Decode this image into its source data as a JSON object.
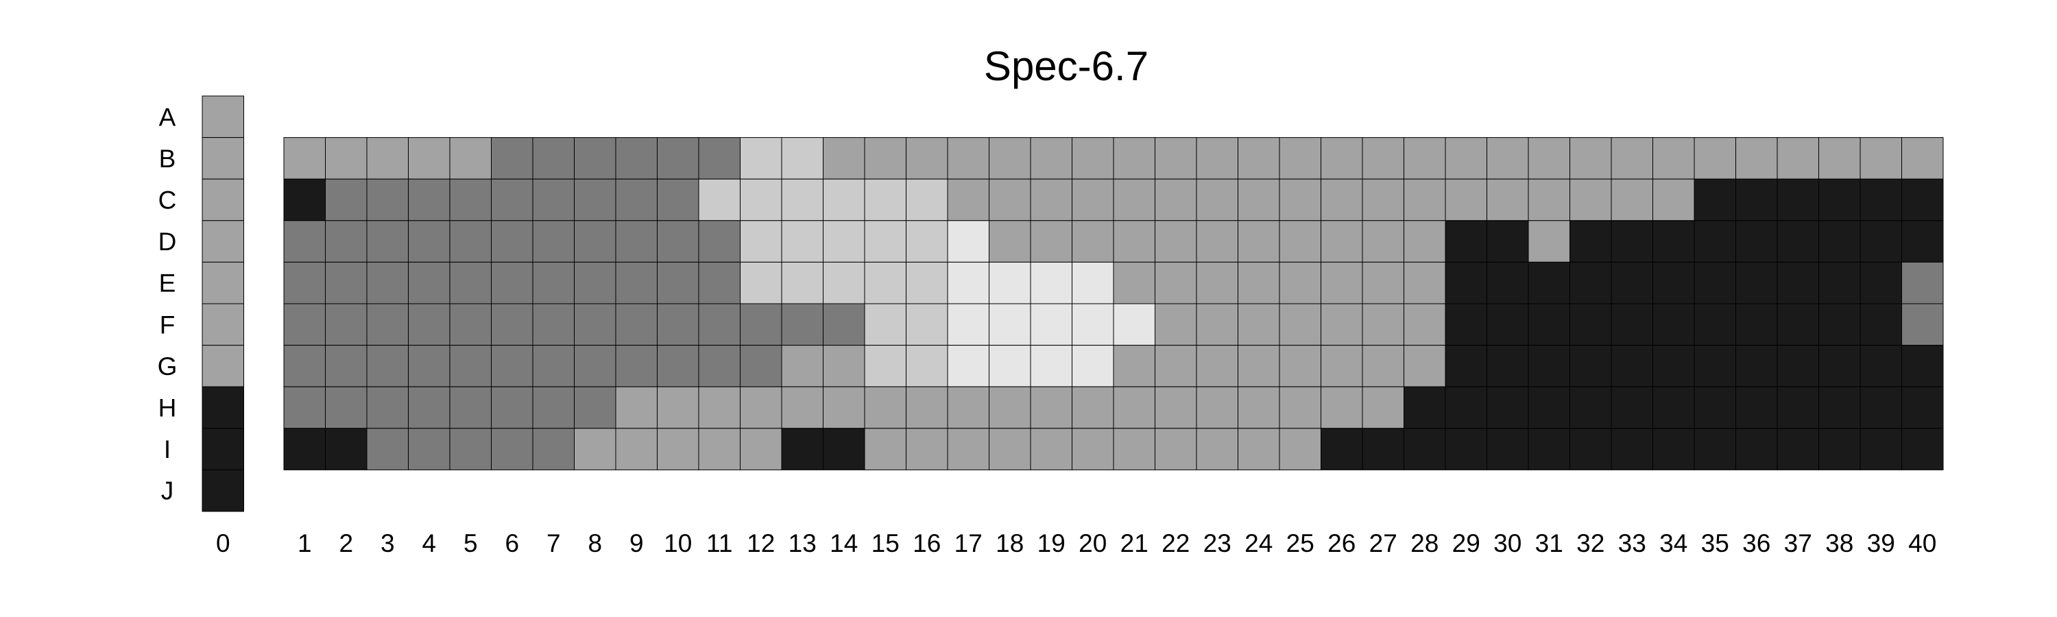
{
  "chart_data": {
    "type": "heatmap",
    "title": "Spec-6.7",
    "xlabel": "",
    "ylabel": "",
    "rows": [
      "A",
      "B",
      "C",
      "D",
      "E",
      "F",
      "G",
      "H",
      "I",
      "J"
    ],
    "control_column": {
      "label": "0",
      "values": [
        "L2",
        "L2",
        "L2",
        "L2",
        "L2",
        "L2",
        "L2",
        "L0",
        "L0",
        "L0"
      ]
    },
    "columns": [
      "1",
      "2",
      "3",
      "4",
      "5",
      "6",
      "7",
      "8",
      "9",
      "10",
      "11",
      "12",
      "13",
      "14",
      "15",
      "16",
      "17",
      "18",
      "19",
      "20",
      "21",
      "22",
      "23",
      "24",
      "25",
      "26",
      "27",
      "28",
      "29",
      "30",
      "31",
      "32",
      "33",
      "34",
      "35",
      "36",
      "37",
      "38",
      "39",
      "40"
    ],
    "grid_rows": [
      "B",
      "C",
      "D",
      "E",
      "F",
      "G",
      "H",
      "I"
    ],
    "levels": {
      "L0": "#1a1a1a",
      "L1": "#7b7b7b",
      "L2": "#a3a3a3",
      "L3": "#cbcbcb",
      "L4": "#e6e6e6"
    },
    "grid": [
      [
        "L2",
        "L2",
        "L2",
        "L2",
        "L2",
        "L1",
        "L1",
        "L1",
        "L1",
        "L1",
        "L1",
        "L3",
        "L3",
        "L2",
        "L2",
        "L2",
        "L2",
        "L2",
        "L2",
        "L2",
        "L2",
        "L2",
        "L2",
        "L2",
        "L2",
        "L2",
        "L2",
        "L2",
        "L2",
        "L2",
        "L2",
        "L2",
        "L2",
        "L2",
        "L2",
        "L2",
        "L2",
        "L2",
        "L2",
        "L2"
      ],
      [
        "L0",
        "L1",
        "L1",
        "L1",
        "L1",
        "L1",
        "L1",
        "L1",
        "L1",
        "L1",
        "L3",
        "L3",
        "L3",
        "L3",
        "L3",
        "L3",
        "L2",
        "L2",
        "L2",
        "L2",
        "L2",
        "L2",
        "L2",
        "L2",
        "L2",
        "L2",
        "L2",
        "L2",
        "L2",
        "L2",
        "L2",
        "L2",
        "L2",
        "L2",
        "L0",
        "L0",
        "L0",
        "L0",
        "L0",
        "L0"
      ],
      [
        "L1",
        "L1",
        "L1",
        "L1",
        "L1",
        "L1",
        "L1",
        "L1",
        "L1",
        "L1",
        "L1",
        "L3",
        "L3",
        "L3",
        "L3",
        "L3",
        "L4",
        "L2",
        "L2",
        "L2",
        "L2",
        "L2",
        "L2",
        "L2",
        "L2",
        "L2",
        "L2",
        "L2",
        "L0",
        "L0",
        "L2",
        "L0",
        "L0",
        "L0",
        "L0",
        "L0",
        "L0",
        "L0",
        "L0",
        "L0"
      ],
      [
        "L1",
        "L1",
        "L1",
        "L1",
        "L1",
        "L1",
        "L1",
        "L1",
        "L1",
        "L1",
        "L1",
        "L3",
        "L3",
        "L3",
        "L3",
        "L3",
        "L4",
        "L4",
        "L4",
        "L4",
        "L2",
        "L2",
        "L2",
        "L2",
        "L2",
        "L2",
        "L2",
        "L2",
        "L0",
        "L0",
        "L0",
        "L0",
        "L0",
        "L0",
        "L0",
        "L0",
        "L0",
        "L0",
        "L0",
        "L1"
      ],
      [
        "L1",
        "L1",
        "L1",
        "L1",
        "L1",
        "L1",
        "L1",
        "L1",
        "L1",
        "L1",
        "L1",
        "L1",
        "L1",
        "L1",
        "L3",
        "L3",
        "L4",
        "L4",
        "L4",
        "L4",
        "L4",
        "L2",
        "L2",
        "L2",
        "L2",
        "L2",
        "L2",
        "L2",
        "L0",
        "L0",
        "L0",
        "L0",
        "L0",
        "L0",
        "L0",
        "L0",
        "L0",
        "L0",
        "L0",
        "L1"
      ],
      [
        "L1",
        "L1",
        "L1",
        "L1",
        "L1",
        "L1",
        "L1",
        "L1",
        "L1",
        "L1",
        "L1",
        "L1",
        "L2",
        "L2",
        "L3",
        "L3",
        "L4",
        "L4",
        "L4",
        "L4",
        "L2",
        "L2",
        "L2",
        "L2",
        "L2",
        "L2",
        "L2",
        "L2",
        "L0",
        "L0",
        "L0",
        "L0",
        "L0",
        "L0",
        "L0",
        "L0",
        "L0",
        "L0",
        "L0",
        "L0"
      ],
      [
        "L1",
        "L1",
        "L1",
        "L1",
        "L1",
        "L1",
        "L1",
        "L1",
        "L2",
        "L2",
        "L2",
        "L2",
        "L2",
        "L2",
        "L2",
        "L2",
        "L2",
        "L2",
        "L2",
        "L2",
        "L2",
        "L2",
        "L2",
        "L2",
        "L2",
        "L2",
        "L2",
        "L0",
        "L0",
        "L0",
        "L0",
        "L0",
        "L0",
        "L0",
        "L0",
        "L0",
        "L0",
        "L0",
        "L0",
        "L0"
      ],
      [
        "L0",
        "L0",
        "L1",
        "L1",
        "L1",
        "L1",
        "L1",
        "L2",
        "L2",
        "L2",
        "L2",
        "L2",
        "L0",
        "L0",
        "L2",
        "L2",
        "L2",
        "L2",
        "L2",
        "L2",
        "L2",
        "L2",
        "L2",
        "L2",
        "L2",
        "L0",
        "L0",
        "L0",
        "L0",
        "L0",
        "L0",
        "L0",
        "L0",
        "L0",
        "L0",
        "L0",
        "L0",
        "L0",
        "L0",
        "L0"
      ]
    ]
  }
}
